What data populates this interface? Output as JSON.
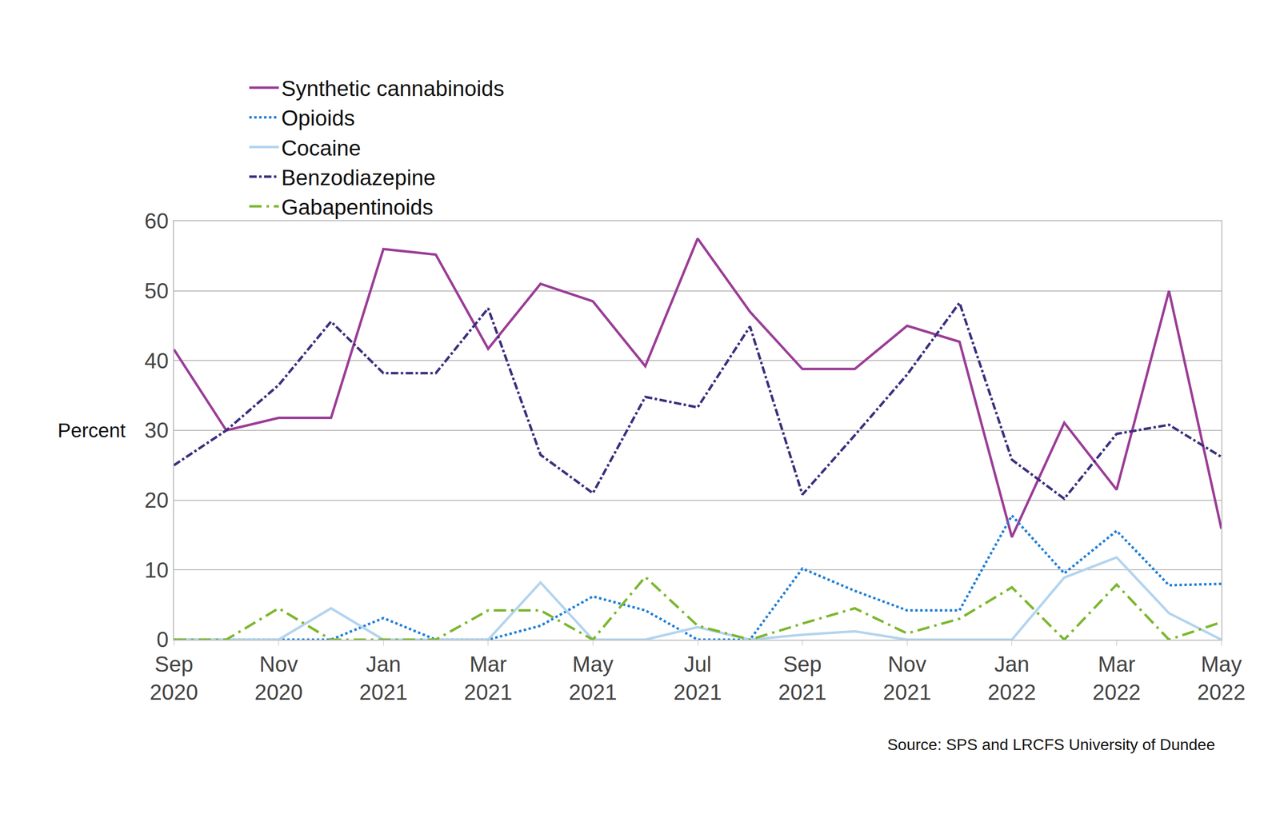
{
  "chart_data": {
    "type": "line",
    "y_label": "Percent",
    "source": "Source: SPS and LRCFS University of Dundee",
    "categories": [
      "Sep 2020",
      null,
      "Nov 2020",
      null,
      "Jan 2021",
      null,
      "Mar 2021",
      null,
      "May 2021",
      null,
      "Jul 2021",
      null,
      "Sep 2021",
      null,
      "Nov 2021",
      null,
      "Jan 2022",
      null,
      "Mar 2022",
      null,
      "May 2022"
    ],
    "series": [
      {
        "name": "Synthetic cannabinoids",
        "color": "#9b3d96",
        "line_style": "solid",
        "values": [
          41.6,
          30,
          31.8,
          31.8,
          56,
          55.2,
          41.7,
          51,
          48.5,
          39.2,
          57.5,
          47,
          38.8,
          38.8,
          45,
          42.7,
          14.7,
          31.1,
          21.5,
          50,
          15.9
        ]
      },
      {
        "name": "Opioids",
        "color": "#1f7fd6",
        "line_style": "dot",
        "values": [
          0,
          0,
          0,
          0,
          3.1,
          0,
          0,
          2,
          6.2,
          4.2,
          0,
          0,
          10.2,
          7,
          4.2,
          4.2,
          17.8,
          9.5,
          15.6,
          7.8,
          8
        ]
      },
      {
        "name": "Cocaine",
        "color": "#b3d4ee",
        "line_style": "solid",
        "values": [
          0,
          0,
          0,
          4.5,
          0,
          0,
          0,
          8.2,
          0,
          0,
          1.8,
          0,
          0.7,
          1.2,
          0,
          0,
          0,
          8.9,
          11.8,
          3.8,
          0
        ]
      },
      {
        "name": "Benzodiazepine",
        "color": "#3c2f7c",
        "line_style": "dashdot",
        "values": [
          25,
          30,
          36.5,
          45.6,
          38.2,
          38.2,
          47.5,
          26.5,
          21,
          34.8,
          33.3,
          44.9,
          20.8,
          29.3,
          38,
          48.3,
          25.8,
          20.2,
          29.5,
          30.8,
          26.2
        ]
      },
      {
        "name": "Gabapentinoids",
        "color": "#7cb72f",
        "line_style": "longdashdot",
        "values": [
          0,
          0,
          4.5,
          0,
          0,
          0,
          4.2,
          4.2,
          0,
          9,
          2,
          0,
          2.3,
          4.5,
          0.9,
          3,
          7.5,
          0,
          7.9,
          0,
          2.5
        ]
      }
    ],
    "ylim": [
      0,
      60
    ],
    "yticks": [
      0,
      10,
      20,
      30,
      40,
      50,
      60
    ],
    "grid": true,
    "legend": "top"
  }
}
